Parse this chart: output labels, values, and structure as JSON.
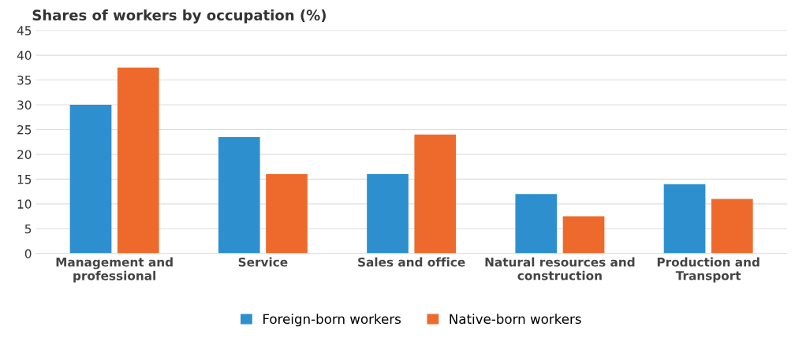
{
  "chart_data": {
    "type": "bar",
    "title": "Shares of workers by occupation (%)",
    "categories": [
      "Management and\nprofessional",
      "Service",
      "Sales and office",
      "Natural resources and\nconstruction",
      "Production and\nTransport"
    ],
    "series": [
      {
        "name": "Foreign-born workers",
        "color": "#2e8fcf",
        "values": [
          30,
          23.5,
          16,
          12,
          14
        ]
      },
      {
        "name": "Native-born workers",
        "color": "#ed6a2c",
        "values": [
          37.5,
          16,
          24,
          7.5,
          11
        ]
      }
    ],
    "ylim": [
      0,
      45
    ],
    "yticks": [
      0,
      5,
      10,
      15,
      20,
      25,
      30,
      35,
      40,
      45
    ],
    "grid": "y",
    "legend": "bottom"
  }
}
